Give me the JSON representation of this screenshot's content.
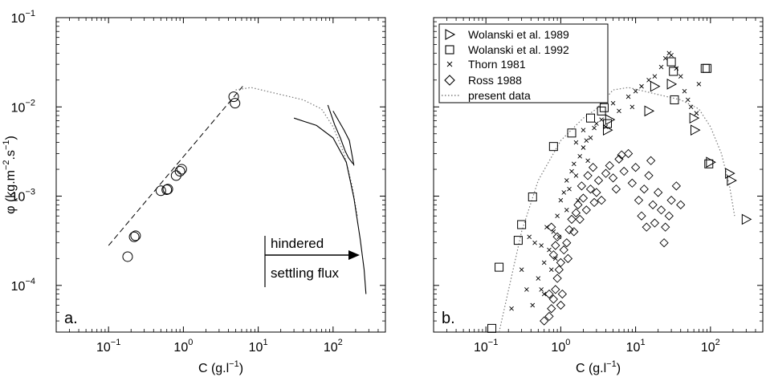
{
  "chart_data": [
    {
      "panel": "a.",
      "type": "scatter",
      "xlabel": "C (g.l",
      "xlabel_exp": "−1",
      "xlabel_close": ")",
      "ylabel": "φ (kg.m",
      "ylabel_exp1": "−2",
      "ylabel_mid": ".s",
      "ylabel_exp2": "−1",
      "ylabel_close": ")",
      "x_scale": "log",
      "y_scale": "log",
      "xlim": [
        0.02,
        500
      ],
      "ylim": [
        3e-05,
        0.1
      ],
      "x_ticks": [
        {
          "value": 0.1,
          "base": "10",
          "exp": "−1"
        },
        {
          "value": 1,
          "base": "10",
          "exp": "0"
        },
        {
          "value": 10,
          "base": "10",
          "exp": "1"
        },
        {
          "value": 100,
          "base": "10",
          "exp": "2"
        }
      ],
      "y_ticks": [
        {
          "value": 0.0001,
          "base": "10",
          "exp": "−4"
        },
        {
          "value": 0.001,
          "base": "10",
          "exp": "−3"
        },
        {
          "value": 0.01,
          "base": "10",
          "exp": "−2"
        },
        {
          "value": 0.1,
          "base": "10",
          "exp": "−1"
        }
      ],
      "circles": [
        {
          "x": 0.18,
          "y": 0.00021
        },
        {
          "x": 0.22,
          "y": 0.00035
        },
        {
          "x": 0.23,
          "y": 0.00036
        },
        {
          "x": 0.5,
          "y": 0.00115
        },
        {
          "x": 0.6,
          "y": 0.00118
        },
        {
          "x": 0.62,
          "y": 0.0012
        },
        {
          "x": 0.8,
          "y": 0.0017
        },
        {
          "x": 0.9,
          "y": 0.0019
        },
        {
          "x": 0.95,
          "y": 0.002
        },
        {
          "x": 4.7,
          "y": 0.013
        },
        {
          "x": 4.9,
          "y": 0.011
        }
      ],
      "dashed_line": [
        {
          "x": 0.1,
          "y": 0.00028
        },
        {
          "x": 6.2,
          "y": 0.017
        }
      ],
      "dotted_line": [
        {
          "x": 5,
          "y": 0.0155
        },
        {
          "x": 8,
          "y": 0.0165
        },
        {
          "x": 40,
          "y": 0.012
        },
        {
          "x": 70,
          "y": 0.0095
        },
        {
          "x": 100,
          "y": 0.006
        },
        {
          "x": 140,
          "y": 0.003
        },
        {
          "x": 180,
          "y": 0.0013
        },
        {
          "x": 210,
          "y": 0.0006
        }
      ],
      "solid_lines": [
        [
          {
            "x": 30,
            "y": 0.0075
          },
          {
            "x": 60,
            "y": 0.0062
          },
          {
            "x": 100,
            "y": 0.0045
          },
          {
            "x": 150,
            "y": 0.0024
          },
          {
            "x": 190,
            "y": 0.00095
          },
          {
            "x": 230,
            "y": 0.00033
          },
          {
            "x": 260,
            "y": 0.00015
          },
          {
            "x": 275,
            "y": 8e-05
          }
        ],
        [
          {
            "x": 85,
            "y": 0.0105
          },
          {
            "x": 105,
            "y": 0.0063
          },
          {
            "x": 125,
            "y": 0.0045
          },
          {
            "x": 145,
            "y": 0.0032
          },
          {
            "x": 160,
            "y": 0.0027
          },
          {
            "x": 185,
            "y": 0.0023
          }
        ],
        [
          {
            "x": 100,
            "y": 0.009
          },
          {
            "x": 140,
            "y": 0.0055
          },
          {
            "x": 165,
            "y": 0.0042
          },
          {
            "x": 190,
            "y": 0.0022
          }
        ]
      ],
      "annotation": {
        "line1": "hindered",
        "line2": "settling flux"
      }
    },
    {
      "panel": "b.",
      "type": "scatter",
      "xlabel": "C (g.l",
      "xlabel_exp": "−1",
      "xlabel_close": ")",
      "x_scale": "log",
      "y_scale": "log",
      "xlim": [
        0.02,
        500
      ],
      "ylim": [
        3e-05,
        0.1
      ],
      "x_ticks": [
        {
          "value": 0.1,
          "base": "10",
          "exp": "−1"
        },
        {
          "value": 1,
          "base": "10",
          "exp": "0"
        },
        {
          "value": 10,
          "base": "10",
          "exp": "1"
        },
        {
          "value": 100,
          "base": "10",
          "exp": "2"
        }
      ],
      "legend": {
        "placement": "top-left",
        "entries": [
          "Wolanski et al. 1989",
          "Wolanski et al. 1992",
          "Thorn 1981",
          "Ross 1988",
          "present data"
        ]
      },
      "series": [
        {
          "name": "Wolanski et al. 1989",
          "marker": "triangle-right",
          "points": [
            {
              "x": 4.2,
              "y": 0.0055
            },
            {
              "x": 4.5,
              "y": 0.0072
            },
            {
              "x": 15,
              "y": 0.009
            },
            {
              "x": 18,
              "y": 0.017
            },
            {
              "x": 30,
              "y": 0.018
            },
            {
              "x": 60,
              "y": 0.0075
            },
            {
              "x": 62,
              "y": 0.0055
            },
            {
              "x": 100,
              "y": 0.0024
            },
            {
              "x": 180,
              "y": 0.0018
            },
            {
              "x": 190,
              "y": 0.0015
            },
            {
              "x": 300,
              "y": 0.00055
            }
          ]
        },
        {
          "name": "Wolanski et al. 1992",
          "marker": "square",
          "points": [
            {
              "x": 0.12,
              "y": 3.3e-05
            },
            {
              "x": 0.15,
              "y": 0.00016
            },
            {
              "x": 0.27,
              "y": 0.00032
            },
            {
              "x": 0.3,
              "y": 0.00048
            },
            {
              "x": 0.42,
              "y": 0.00098
            },
            {
              "x": 0.8,
              "y": 0.0036
            },
            {
              "x": 1.4,
              "y": 0.0051
            },
            {
              "x": 2.5,
              "y": 0.0075
            },
            {
              "x": 3.5,
              "y": 0.009
            },
            {
              "x": 3.8,
              "y": 0.0098
            },
            {
              "x": 4.2,
              "y": 0.0065
            },
            {
              "x": 30,
              "y": 0.032
            },
            {
              "x": 32,
              "y": 0.025
            },
            {
              "x": 33,
              "y": 0.012
            },
            {
              "x": 85,
              "y": 0.027
            },
            {
              "x": 90,
              "y": 0.027
            },
            {
              "x": 95,
              "y": 0.0023
            }
          ]
        },
        {
          "name": "Thorn 1981",
          "marker": "x",
          "points": [
            {
              "x": 0.22,
              "y": 5.5e-05
            },
            {
              "x": 0.3,
              "y": 0.00015
            },
            {
              "x": 0.38,
              "y": 0.00035
            },
            {
              "x": 0.45,
              "y": 0.0003
            },
            {
              "x": 0.5,
              "y": 0.00012
            },
            {
              "x": 0.55,
              "y": 0.00028
            },
            {
              "x": 0.6,
              "y": 0.00018
            },
            {
              "x": 0.65,
              "y": 0.00045
            },
            {
              "x": 0.7,
              "y": 0.00025
            },
            {
              "x": 0.75,
              "y": 0.00015
            },
            {
              "x": 0.8,
              "y": 0.0004
            },
            {
              "x": 0.85,
              "y": 0.0002
            },
            {
              "x": 0.9,
              "y": 0.0006
            },
            {
              "x": 1.0,
              "y": 0.0009
            },
            {
              "x": 1.1,
              "y": 0.0011
            },
            {
              "x": 1.2,
              "y": 0.0015
            },
            {
              "x": 1.3,
              "y": 0.0012
            },
            {
              "x": 1.4,
              "y": 0.0019
            },
            {
              "x": 1.5,
              "y": 0.0023
            },
            {
              "x": 1.6,
              "y": 0.0017
            },
            {
              "x": 1.8,
              "y": 0.0028
            },
            {
              "x": 2.0,
              "y": 0.0035
            },
            {
              "x": 2.2,
              "y": 0.0042
            },
            {
              "x": 2.5,
              "y": 0.0045
            },
            {
              "x": 2.8,
              "y": 0.0058
            },
            {
              "x": 3.0,
              "y": 0.0065
            },
            {
              "x": 3.5,
              "y": 0.0072
            },
            {
              "x": 5,
              "y": 0.011
            },
            {
              "x": 6,
              "y": 0.009
            },
            {
              "x": 8,
              "y": 0.013
            },
            {
              "x": 10,
              "y": 0.015
            },
            {
              "x": 12,
              "y": 0.017
            },
            {
              "x": 15,
              "y": 0.02
            },
            {
              "x": 18,
              "y": 0.022
            },
            {
              "x": 22,
              "y": 0.028
            },
            {
              "x": 25,
              "y": 0.035
            },
            {
              "x": 28,
              "y": 0.04
            },
            {
              "x": 30,
              "y": 0.038
            },
            {
              "x": 35,
              "y": 0.027
            },
            {
              "x": 40,
              "y": 0.022
            },
            {
              "x": 45,
              "y": 0.015
            },
            {
              "x": 50,
              "y": 0.012
            },
            {
              "x": 55,
              "y": 0.01
            },
            {
              "x": 65,
              "y": 0.0085
            },
            {
              "x": 70,
              "y": 0.018
            },
            {
              "x": 0.35,
              "y": 9e-05
            },
            {
              "x": 0.42,
              "y": 6e-05
            },
            {
              "x": 0.6,
              "y": 8e-05
            },
            {
              "x": 1.2,
              "y": 0.0007
            },
            {
              "x": 1.7,
              "y": 0.0009
            },
            {
              "x": 2.3,
              "y": 0.0025
            },
            {
              "x": 0.95,
              "y": 0.00035
            },
            {
              "x": 0.55,
              "y": 9e-05
            },
            {
              "x": 1.6,
              "y": 0.004
            },
            {
              "x": 2.0,
              "y": 0.0055
            },
            {
              "x": 4.0,
              "y": 0.006
            },
            {
              "x": 9,
              "y": 0.01
            }
          ]
        },
        {
          "name": "Ross 1988",
          "marker": "diamond",
          "points": [
            {
              "x": 0.6,
              "y": 4e-05
            },
            {
              "x": 0.7,
              "y": 4.5e-05
            },
            {
              "x": 0.75,
              "y": 5.5e-05
            },
            {
              "x": 0.8,
              "y": 7e-05
            },
            {
              "x": 0.85,
              "y": 9e-05
            },
            {
              "x": 0.9,
              "y": 0.00012
            },
            {
              "x": 0.95,
              "y": 0.00015
            },
            {
              "x": 1.0,
              "y": 0.00018
            },
            {
              "x": 0.8,
              "y": 0.00022
            },
            {
              "x": 0.85,
              "y": 0.00028
            },
            {
              "x": 0.9,
              "y": 0.00035
            },
            {
              "x": 0.75,
              "y": 0.00045
            },
            {
              "x": 1.0,
              "y": 6e-05
            },
            {
              "x": 1.05,
              "y": 8e-05
            },
            {
              "x": 1.1,
              "y": 0.00025
            },
            {
              "x": 1.2,
              "y": 0.0003
            },
            {
              "x": 1.3,
              "y": 0.00042
            },
            {
              "x": 1.4,
              "y": 0.00055
            },
            {
              "x": 1.5,
              "y": 0.0004
            },
            {
              "x": 1.6,
              "y": 0.00065
            },
            {
              "x": 1.7,
              "y": 0.0008
            },
            {
              "x": 1.8,
              "y": 0.00055
            },
            {
              "x": 2.0,
              "y": 0.00095
            },
            {
              "x": 2.2,
              "y": 0.0007
            },
            {
              "x": 2.5,
              "y": 0.0012
            },
            {
              "x": 2.8,
              "y": 0.00085
            },
            {
              "x": 3.0,
              "y": 0.0011
            },
            {
              "x": 3.2,
              "y": 0.0015
            },
            {
              "x": 3.5,
              "y": 0.0009
            },
            {
              "x": 4.0,
              "y": 0.0018
            },
            {
              "x": 4.5,
              "y": 0.0022
            },
            {
              "x": 5.0,
              "y": 0.0016
            },
            {
              "x": 5.5,
              "y": 0.0012
            },
            {
              "x": 6.0,
              "y": 0.0026
            },
            {
              "x": 7.0,
              "y": 0.0019
            },
            {
              "x": 8.0,
              "y": 0.003
            },
            {
              "x": 9.0,
              "y": 0.0014
            },
            {
              "x": 10,
              "y": 0.0021
            },
            {
              "x": 11,
              "y": 0.0009
            },
            {
              "x": 12,
              "y": 0.0006
            },
            {
              "x": 13,
              "y": 0.0012
            },
            {
              "x": 14,
              "y": 0.00045
            },
            {
              "x": 15,
              "y": 0.0017
            },
            {
              "x": 16,
              "y": 0.0025
            },
            {
              "x": 17,
              "y": 0.0008
            },
            {
              "x": 18,
              "y": 0.0005
            },
            {
              "x": 20,
              "y": 0.0011
            },
            {
              "x": 22,
              "y": 0.0007
            },
            {
              "x": 24,
              "y": 0.0003
            },
            {
              "x": 25,
              "y": 0.00045
            },
            {
              "x": 28,
              "y": 0.0006
            },
            {
              "x": 30,
              "y": 0.0009
            },
            {
              "x": 35,
              "y": 0.0013
            },
            {
              "x": 40,
              "y": 0.0008
            },
            {
              "x": 2.3,
              "y": 0.0017
            },
            {
              "x": 2.7,
              "y": 0.0021
            },
            {
              "x": 1.9,
              "y": 0.0013
            },
            {
              "x": 1.25,
              "y": 0.0002
            },
            {
              "x": 0.7,
              "y": 8e-05
            },
            {
              "x": 6.5,
              "y": 0.0029
            }
          ]
        },
        {
          "name": "present data",
          "marker": "dotted-line",
          "points": [
            {
              "x": 0.15,
              "y": 3e-05
            },
            {
              "x": 0.3,
              "y": 0.0004
            },
            {
              "x": 0.5,
              "y": 0.0015
            },
            {
              "x": 1.0,
              "y": 0.0042
            },
            {
              "x": 2.0,
              "y": 0.0075
            },
            {
              "x": 3.0,
              "y": 0.0095
            },
            {
              "x": 5.0,
              "y": 0.0155
            },
            {
              "x": 8.0,
              "y": 0.0165
            },
            {
              "x": 40,
              "y": 0.012
            },
            {
              "x": 70,
              "y": 0.0095
            },
            {
              "x": 100,
              "y": 0.006
            },
            {
              "x": 140,
              "y": 0.003
            },
            {
              "x": 180,
              "y": 0.0013
            },
            {
              "x": 210,
              "y": 0.0006
            }
          ]
        }
      ]
    }
  ]
}
